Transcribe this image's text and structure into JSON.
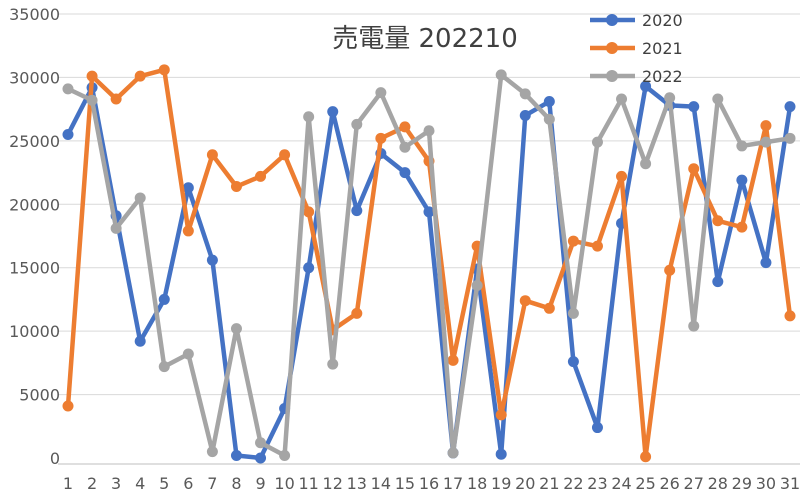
{
  "chart_data": {
    "type": "line",
    "title": "売電量 202210",
    "xlabel": "",
    "ylabel": "",
    "x": [
      1,
      2,
      3,
      4,
      5,
      6,
      7,
      8,
      9,
      10,
      11,
      12,
      13,
      14,
      15,
      16,
      17,
      18,
      19,
      20,
      21,
      22,
      23,
      24,
      25,
      26,
      27,
      28,
      29,
      30,
      31
    ],
    "ylim": [
      0,
      35000
    ],
    "yticks": [
      0,
      5000,
      10000,
      15000,
      20000,
      25000,
      30000,
      35000
    ],
    "grid": "horizontal",
    "legend_position": "top-right",
    "series": [
      {
        "name": "2020",
        "color": "#4472c4",
        "values": [
          25500,
          29200,
          19100,
          9200,
          12500,
          21300,
          15600,
          200,
          0,
          3900,
          15000,
          27300,
          19500,
          24000,
          22500,
          19400,
          400,
          14900,
          300,
          27000,
          28100,
          7600,
          2400,
          18500,
          29300,
          27800,
          27700,
          13900,
          21900,
          15400,
          27700
        ]
      },
      {
        "name": "2021",
        "color": "#ed7d31",
        "values": [
          4100,
          30100,
          28300,
          30100,
          30600,
          17900,
          23900,
          21400,
          22200,
          23900,
          19400,
          10100,
          11400,
          25200,
          26100,
          23400,
          7700,
          16700,
          3400,
          12400,
          11800,
          17100,
          16700,
          22200,
          100,
          14800,
          22800,
          18700,
          18200,
          26200,
          11200
        ]
      },
      {
        "name": "2022",
        "color": "#a5a5a5",
        "values": [
          29100,
          28200,
          18100,
          20500,
          7200,
          8200,
          500,
          10200,
          1200,
          200,
          26900,
          7400,
          26300,
          28800,
          24500,
          25800,
          400,
          13600,
          30200,
          28700,
          26700,
          11400,
          24900,
          28300,
          23200,
          28400,
          10400,
          28300,
          24600,
          24900,
          25200
        ]
      }
    ]
  }
}
